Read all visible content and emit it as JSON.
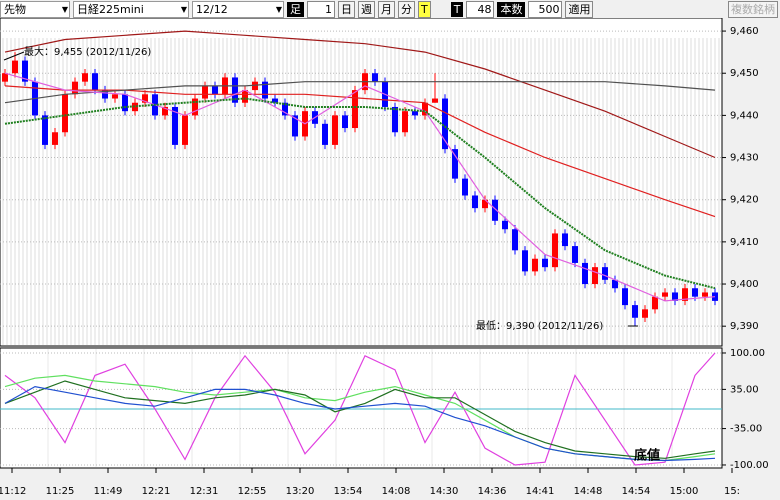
{
  "toolbar": {
    "market": "先物",
    "symbol": "日経225mini",
    "date": "12/12",
    "bar_label": "足",
    "bar_size": "1",
    "periods": [
      "日",
      "週",
      "月",
      "分",
      "T"
    ],
    "tick": "T",
    "tick_count": "48",
    "count_label": "本数",
    "count": "500",
    "apply": "適用",
    "multi": "複数銘柄"
  },
  "time_axis": [
    "11:12",
    "11:25",
    "11:49",
    "12:21",
    "12:31",
    "12:55",
    "13:20",
    "13:54",
    "14:08",
    "14:30",
    "14:36",
    "14:41",
    "14:48",
    "14:54",
    "15:00",
    "15:"
  ],
  "chart_data": [
    {
      "type": "candlestick",
      "up_color": "#ff0000",
      "down_color": "#0000ff",
      "xlim": [
        -0.5,
        71.7
      ],
      "ylim": [
        9385.3,
        9463.1
      ],
      "yticks": [
        {
          "value": 9460,
          "label": "9,460"
        },
        {
          "value": 9450,
          "label": "9,450"
        },
        {
          "value": 9440,
          "label": "9,440"
        },
        {
          "value": 9430,
          "label": "9,430"
        },
        {
          "value": 9420,
          "label": "9,420"
        },
        {
          "value": 9410,
          "label": "9,410"
        },
        {
          "value": 9400,
          "label": "9,400"
        },
        {
          "value": 9390,
          "label": "9,390"
        }
      ],
      "open": [
        9448,
        9450,
        9453,
        9448,
        9440,
        9433,
        9436,
        9445,
        9448,
        9450,
        9446,
        9444,
        9445,
        9441,
        9443,
        9445,
        9440,
        9442,
        9433,
        9440,
        9444,
        9447,
        9445,
        9449,
        9443,
        9446,
        9448,
        9444,
        9443,
        9440,
        9435,
        9441,
        9438,
        9433,
        9440,
        9437,
        9446,
        9450,
        9448,
        9442,
        9436,
        9441,
        9440,
        9443,
        9444,
        9432,
        9425,
        9421,
        9418,
        9420,
        9415,
        9413,
        9408,
        9403,
        9406,
        9404,
        9412,
        9409,
        9405,
        9400,
        9404,
        9401,
        9399,
        9395,
        9392,
        9394,
        9397,
        9398,
        9396,
        9399,
        9397,
        9398
      ],
      "high": [
        9451,
        9455,
        9454,
        9449,
        9441,
        9437,
        9446,
        9449,
        9451,
        9451,
        9447,
        9446,
        9446,
        9444,
        9446,
        9446,
        9443,
        9443,
        9441,
        9445,
        9448,
        9448,
        9450,
        9450,
        9447,
        9449,
        9449,
        9445,
        9444,
        9441,
        9442,
        9442,
        9439,
        9441,
        9441,
        9447,
        9451,
        9451,
        9449,
        9443,
        9442,
        9442,
        9444,
        9450,
        9445,
        9433,
        9426,
        9422,
        9421,
        9421,
        9416,
        9414,
        9409,
        9407,
        9407,
        9413,
        9413,
        9410,
        9406,
        9405,
        9405,
        9402,
        9400,
        9396,
        9395,
        9398,
        9399,
        9399,
        9400,
        9400,
        9399,
        9399
      ],
      "low": [
        9447,
        9449,
        9447,
        9439,
        9432,
        9432,
        9435,
        9444,
        9447,
        9445,
        9443,
        9443,
        9440,
        9440,
        9442,
        9439,
        9439,
        9432,
        9432,
        9439,
        9443,
        9444,
        9444,
        9442,
        9442,
        9445,
        9443,
        9442,
        9439,
        9434,
        9434,
        9437,
        9432,
        9432,
        9436,
        9436,
        9445,
        9447,
        9441,
        9435,
        9435,
        9439,
        9439,
        9443,
        9431,
        9424,
        9420,
        9417,
        9417,
        9414,
        9412,
        9407,
        9402,
        9402,
        9403,
        9403,
        9408,
        9404,
        9399,
        9399,
        9400,
        9398,
        9394,
        9390,
        9391,
        9393,
        9396,
        9395,
        9395,
        9396,
        9396,
        9395
      ],
      "close": [
        9450,
        9453,
        9448,
        9440,
        9433,
        9436,
        9445,
        9448,
        9450,
        9446,
        9444,
        9445,
        9441,
        9443,
        9445,
        9440,
        9442,
        9433,
        9440,
        9444,
        9447,
        9445,
        9449,
        9443,
        9446,
        9448,
        9444,
        9443,
        9440,
        9435,
        9441,
        9438,
        9433,
        9440,
        9437,
        9446,
        9450,
        9448,
        9442,
        9436,
        9441,
        9440,
        9443,
        9444,
        9432,
        9425,
        9421,
        9418,
        9420,
        9415,
        9413,
        9408,
        9403,
        9406,
        9404,
        9412,
        9409,
        9405,
        9400,
        9404,
        9401,
        9399,
        9395,
        9392,
        9394,
        9397,
        9398,
        9396,
        9399,
        9397,
        9398,
        9396
      ],
      "overlays": [
        {
          "color": "#a01818",
          "x": [
            0,
            6,
            12,
            18,
            24,
            30,
            36,
            42,
            48,
            54,
            60,
            66,
            71
          ],
          "values": [
            9455,
            9458,
            9459,
            9460,
            9459,
            9458,
            9457,
            9455,
            9451,
            9446,
            9441,
            9435,
            9430
          ]
        },
        {
          "color": "#e02020",
          "x": [
            0,
            6,
            12,
            18,
            24,
            30,
            36,
            42,
            48,
            54,
            60,
            66,
            71
          ],
          "values": [
            9447,
            9446,
            9446,
            9445,
            9445,
            9445,
            9444,
            9443,
            9436,
            9430,
            9425,
            9420,
            9416
          ]
        },
        {
          "color": "#505050",
          "x": [
            0,
            6,
            12,
            18,
            24,
            30,
            36,
            42,
            48,
            54,
            60,
            66,
            71
          ],
          "values": [
            9443,
            9445,
            9446,
            9447,
            9447,
            9448,
            9448,
            9448,
            9448,
            9448,
            9448,
            9447,
            9446
          ]
        },
        {
          "color": "#e060e0",
          "x": [
            0,
            6,
            12,
            18,
            24,
            30,
            36,
            42,
            48,
            54,
            60,
            66,
            71
          ],
          "values": [
            9450,
            9446,
            9445,
            9440,
            9446,
            9438,
            9447,
            9441,
            9420,
            9407,
            9402,
            9396,
            9397
          ]
        },
        {
          "color": "#208020",
          "dashed": true,
          "x": [
            0,
            6,
            12,
            18,
            24,
            30,
            36,
            42,
            48,
            54,
            60,
            66,
            71
          ],
          "values": [
            9438,
            9440,
            9442,
            9443,
            9444,
            9442,
            9442,
            9441,
            9430,
            9418,
            9408,
            9402,
            9399
          ]
        }
      ],
      "annotations": [
        "最大：9,455 (2012/11/26)",
        "最低：9,390 (2012/11/26)"
      ]
    },
    {
      "type": "line",
      "xlim": [
        -0.5,
        71.7
      ],
      "ylim": [
        -105.4,
        108.9
      ],
      "yticks": [
        {
          "value": 100,
          "label": "100.00"
        },
        {
          "value": 35,
          "label": "35.00"
        },
        {
          "value": -35,
          "label": "-35.00"
        },
        {
          "value": -100,
          "label": "-100.00"
        }
      ],
      "hline": {
        "value": 0,
        "color": "#40b8c8"
      },
      "x": [
        0,
        3,
        6,
        9,
        12,
        15,
        18,
        21,
        24,
        27,
        30,
        33,
        36,
        39,
        42,
        45,
        48,
        51,
        54,
        57,
        60,
        63,
        66,
        69,
        71
      ],
      "series": [
        {
          "color": "#e040e0",
          "values": [
            60,
            20,
            -60,
            60,
            80,
            0,
            -90,
            20,
            95,
            30,
            -80,
            -20,
            95,
            70,
            -60,
            30,
            -70,
            -100,
            -95,
            60,
            -20,
            -100,
            -95,
            60,
            100
          ]
        },
        {
          "color": "#60e060",
          "values": [
            40,
            55,
            60,
            50,
            45,
            40,
            30,
            25,
            30,
            35,
            20,
            15,
            30,
            40,
            25,
            10,
            -20,
            -50,
            -70,
            -80,
            -85,
            -90,
            -92,
            -85,
            -80
          ]
        },
        {
          "color": "#207020",
          "values": [
            10,
            30,
            50,
            35,
            20,
            15,
            10,
            20,
            25,
            35,
            25,
            -5,
            10,
            35,
            20,
            20,
            -10,
            -40,
            -60,
            -75,
            -80,
            -85,
            -88,
            -80,
            -75
          ]
        },
        {
          "color": "#2050d0",
          "values": [
            10,
            40,
            30,
            20,
            10,
            5,
            20,
            35,
            35,
            25,
            10,
            0,
            5,
            10,
            5,
            -15,
            -30,
            -50,
            -70,
            -80,
            -85,
            -90,
            -92,
            -90,
            -88
          ]
        }
      ],
      "annotation": "底値"
    }
  ]
}
